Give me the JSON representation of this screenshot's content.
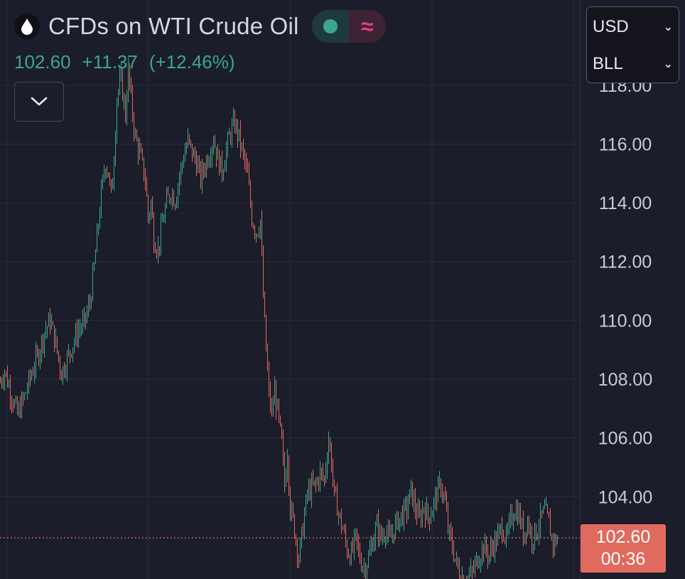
{
  "header": {
    "symbol_title": "CFDs on WTI Crude Oil",
    "symbol_icon": "drop-icon",
    "market_status_icon": "market-open-dot-icon",
    "delayed_icon": "wave-icon"
  },
  "quote": {
    "last": "102.60",
    "change": "+11.37",
    "change_pct": "(+12.46%)",
    "color": "#3ca68f"
  },
  "selectors": {
    "currency": "USD",
    "unit": "BLL"
  },
  "price_tag": {
    "price": "102.60",
    "countdown": "00:36",
    "color": "#e06a5e"
  },
  "chart_data": {
    "type": "candlestick",
    "ylim": [
      101.2,
      120.9
    ],
    "y_ticks": [
      "118.00",
      "116.00",
      "114.00",
      "112.00",
      "110.00",
      "108.00",
      "106.00",
      "104.00"
    ],
    "last_price": 102.6,
    "up_color": "#3ca68f",
    "down_color": "#e06a5e",
    "grid": true,
    "price_path": [
      [
        0,
        107.9
      ],
      [
        6,
        108.3
      ],
      [
        14,
        107.6
      ],
      [
        24,
        106.8
      ],
      [
        34,
        107.4
      ],
      [
        44,
        108.2
      ],
      [
        54,
        108.9
      ],
      [
        62,
        109.6
      ],
      [
        70,
        110.0
      ],
      [
        78,
        109.2
      ],
      [
        86,
        108.2
      ],
      [
        94,
        108.7
      ],
      [
        102,
        109.2
      ],
      [
        110,
        109.7
      ],
      [
        118,
        109.9
      ],
      [
        126,
        110.6
      ],
      [
        132,
        111.8
      ],
      [
        136,
        112.8
      ],
      [
        142,
        114.3
      ],
      [
        148,
        115.4
      ],
      [
        152,
        115.0
      ],
      [
        156,
        114.2
      ],
      [
        160,
        115.6
      ],
      [
        164,
        117.6
      ],
      [
        170,
        118.2
      ],
      [
        176,
        117.0
      ],
      [
        180,
        118.5
      ],
      [
        184,
        117.5
      ],
      [
        190,
        116.2
      ],
      [
        196,
        115.7
      ],
      [
        204,
        114.8
      ],
      [
        208,
        113.5
      ],
      [
        212,
        114.0
      ],
      [
        216,
        112.8
      ],
      [
        222,
        112.4
      ],
      [
        228,
        113.3
      ],
      [
        234,
        114.0
      ],
      [
        240,
        114.4
      ],
      [
        246,
        114.1
      ],
      [
        252,
        114.9
      ],
      [
        258,
        115.6
      ],
      [
        264,
        116.1
      ],
      [
        270,
        115.7
      ],
      [
        276,
        115.4
      ],
      [
        282,
        114.8
      ],
      [
        288,
        115.3
      ],
      [
        294,
        115.7
      ],
      [
        300,
        116.2
      ],
      [
        306,
        115.5
      ],
      [
        312,
        115.1
      ],
      [
        318,
        115.8
      ],
      [
        324,
        116.4
      ],
      [
        330,
        116.7
      ],
      [
        336,
        116.2
      ],
      [
        342,
        115.6
      ],
      [
        348,
        114.9
      ],
      [
        354,
        113.5
      ],
      [
        360,
        113.0
      ],
      [
        366,
        113.4
      ],
      [
        370,
        110.8
      ],
      [
        374,
        109.0
      ],
      [
        378,
        107.5
      ],
      [
        382,
        106.8
      ],
      [
        386,
        107.6
      ],
      [
        390,
        106.9
      ],
      [
        396,
        105.8
      ],
      [
        400,
        104.4
      ],
      [
        404,
        105.6
      ],
      [
        408,
        103.6
      ],
      [
        412,
        103.2
      ],
      [
        416,
        102.6
      ],
      [
        420,
        101.9
      ],
      [
        426,
        103.0
      ],
      [
        432,
        104.1
      ],
      [
        438,
        104.3
      ],
      [
        444,
        104.4
      ],
      [
        450,
        104.8
      ],
      [
        456,
        104.6
      ],
      [
        462,
        106.0
      ],
      [
        466,
        105.2
      ],
      [
        470,
        104.0
      ],
      [
        474,
        103.7
      ],
      [
        478,
        103.2
      ],
      [
        482,
        102.9
      ],
      [
        488,
        102.2
      ],
      [
        494,
        102.0
      ],
      [
        500,
        102.6
      ],
      [
        506,
        101.9
      ],
      [
        512,
        101.6
      ],
      [
        518,
        101.9
      ],
      [
        524,
        102.5
      ],
      [
        530,
        103.0
      ],
      [
        536,
        102.6
      ],
      [
        542,
        102.9
      ],
      [
        548,
        102.5
      ],
      [
        554,
        102.9
      ],
      [
        560,
        103.2
      ],
      [
        566,
        103.4
      ],
      [
        572,
        103.6
      ],
      [
        578,
        104.2
      ],
      [
        584,
        103.6
      ],
      [
        590,
        103.2
      ],
      [
        596,
        103.7
      ],
      [
        602,
        103.3
      ],
      [
        608,
        103.6
      ],
      [
        614,
        104.1
      ],
      [
        620,
        104.4
      ],
      [
        626,
        103.8
      ],
      [
        630,
        102.9
      ],
      [
        636,
        102.3
      ],
      [
        642,
        101.7
      ],
      [
        648,
        101.3
      ],
      [
        656,
        101.2
      ],
      [
        664,
        101.4
      ],
      [
        672,
        101.9
      ],
      [
        680,
        102.3
      ],
      [
        688,
        102.0
      ],
      [
        694,
        102.4
      ],
      [
        700,
        102.6
      ],
      [
        706,
        103.0
      ],
      [
        712,
        102.5
      ],
      [
        718,
        103.2
      ],
      [
        724,
        103.6
      ],
      [
        730,
        103.4
      ],
      [
        736,
        102.7
      ],
      [
        742,
        103.2
      ],
      [
        748,
        102.6
      ],
      [
        754,
        102.8
      ],
      [
        760,
        103.2
      ],
      [
        766,
        103.5
      ],
      [
        772,
        103.1
      ],
      [
        778,
        102.4
      ],
      [
        784,
        102.6
      ]
    ]
  }
}
